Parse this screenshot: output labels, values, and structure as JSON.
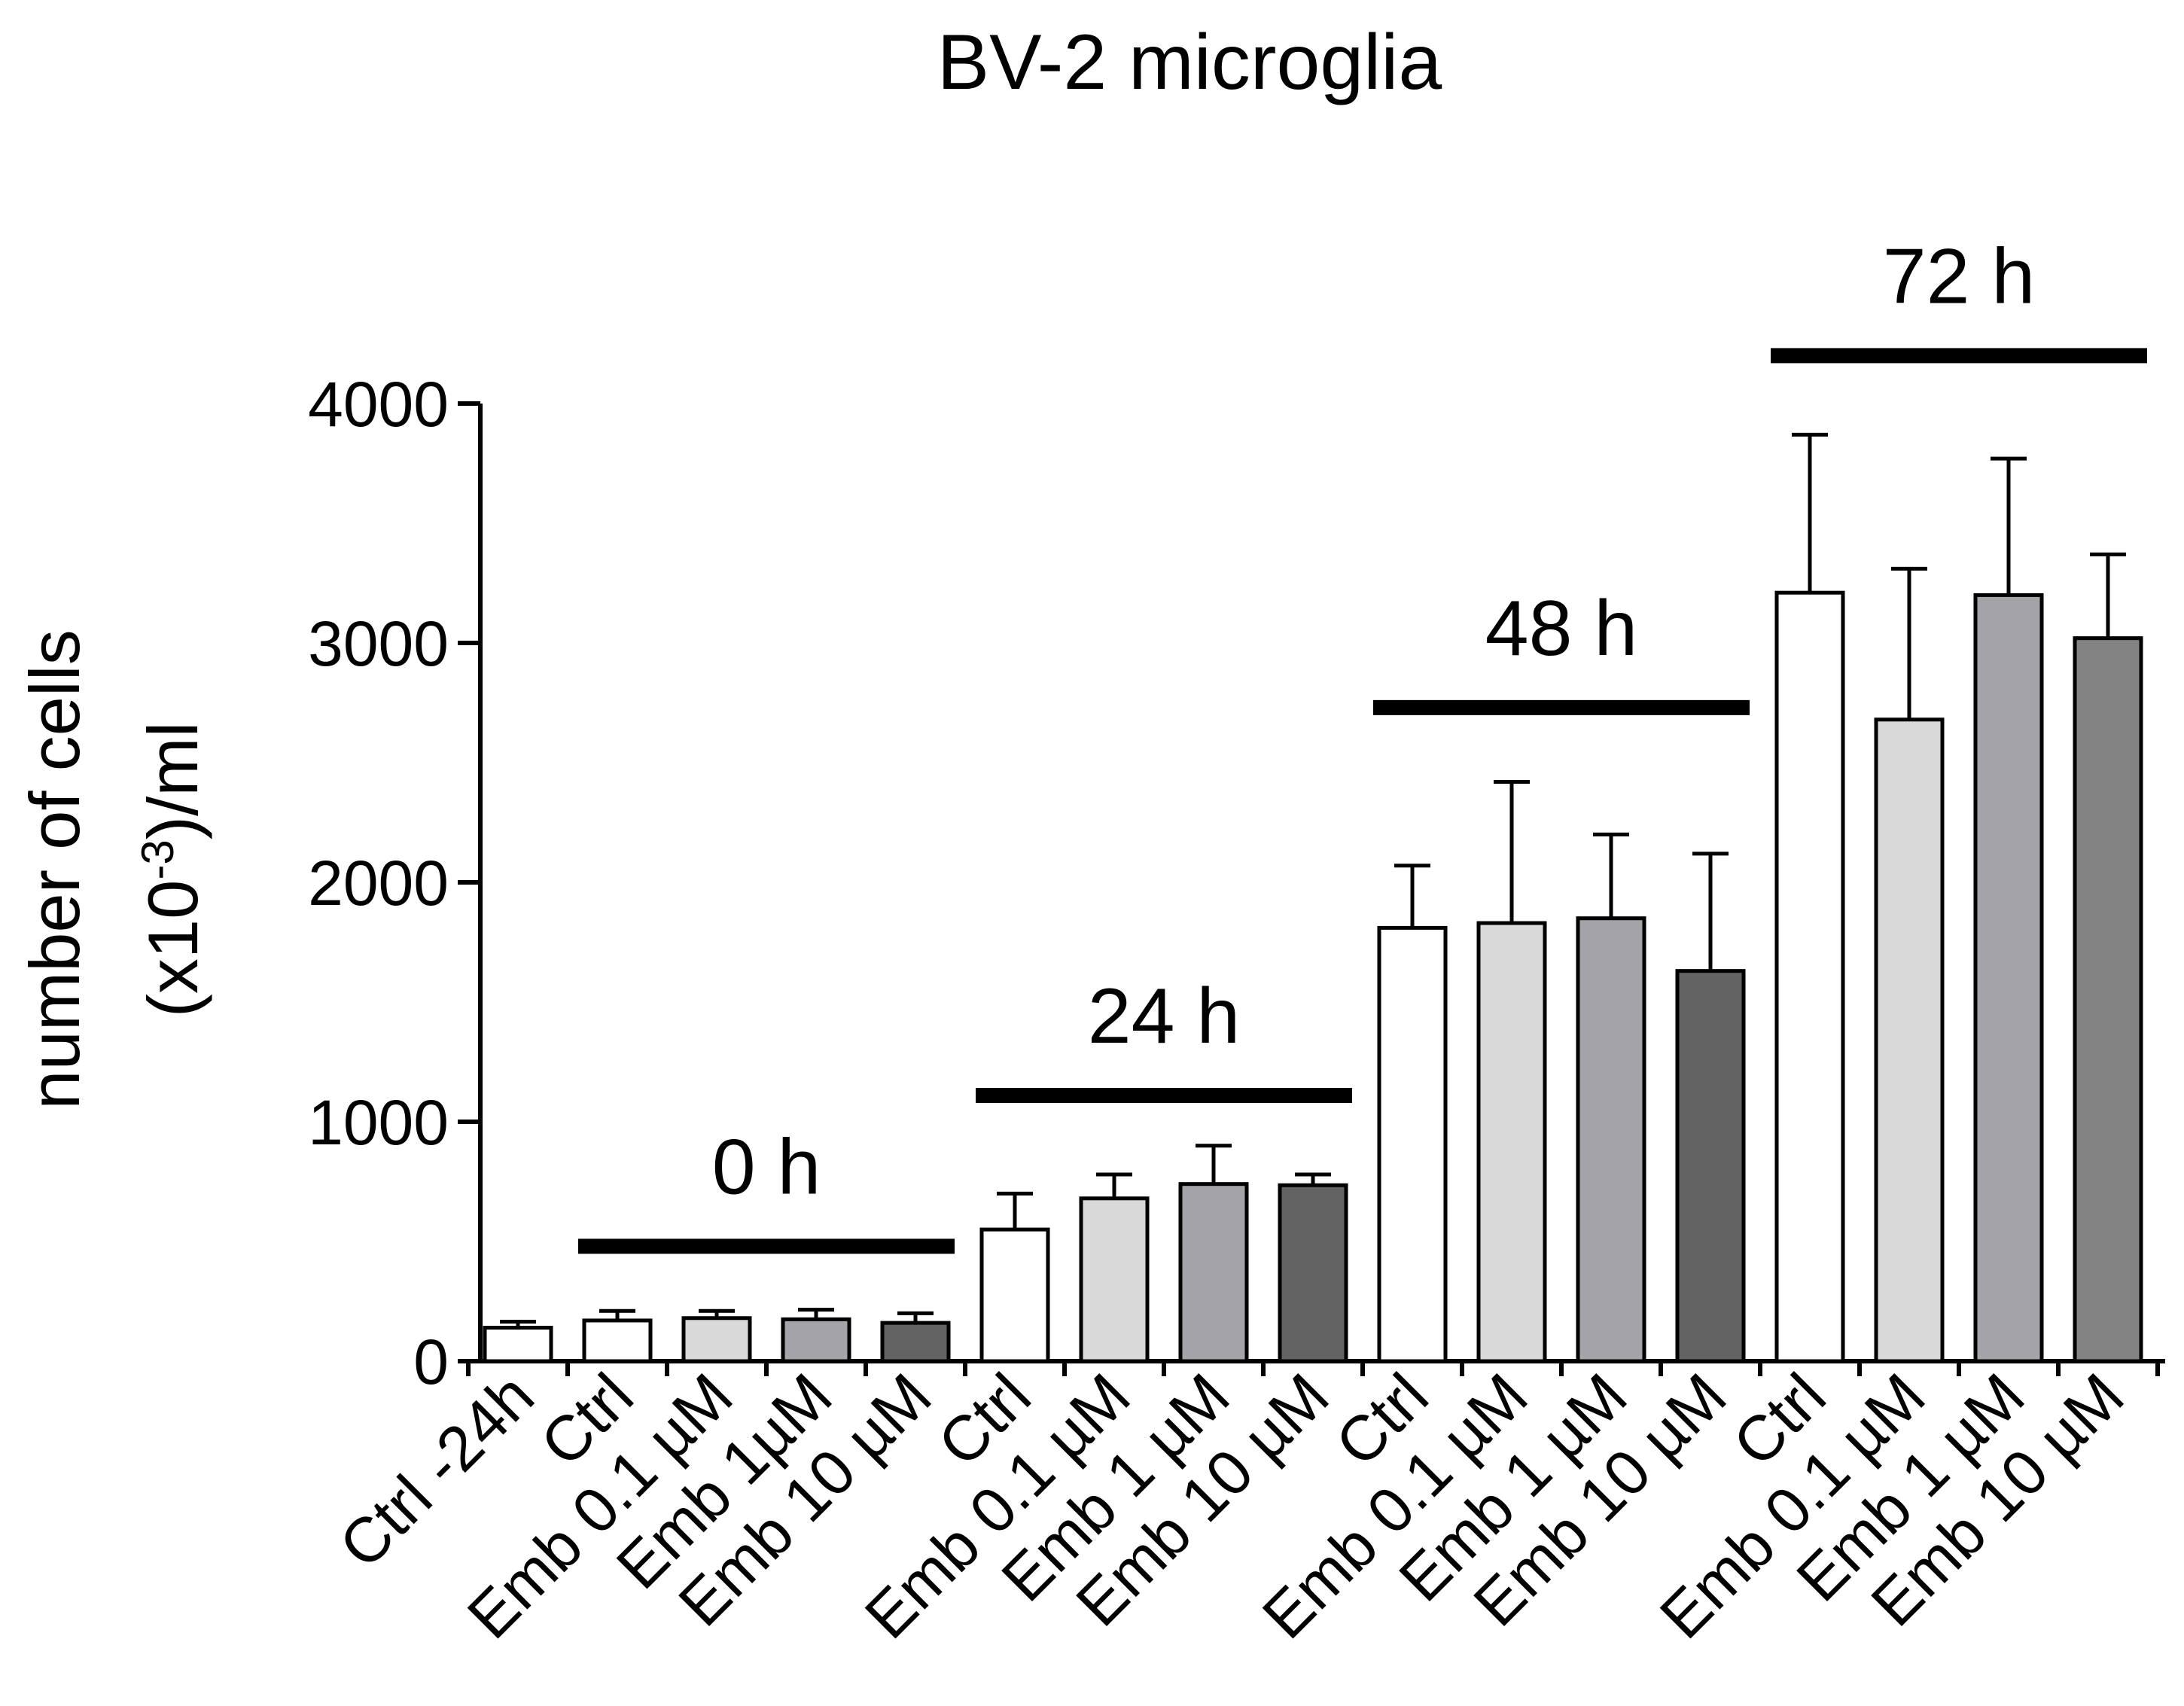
{
  "chart_data": {
    "type": "bar",
    "title": "BV-2 microglia",
    "ylabel_line1": "number of cells",
    "ylabel_line2_prefix": "(x10",
    "ylabel_line2_sup": "-3",
    "ylabel_line2_suffix": ")/ml",
    "xlabel": "",
    "ylim": [
      0,
      4000
    ],
    "yticks": [
      0,
      1000,
      2000,
      3000,
      4000
    ],
    "grid": false,
    "bars": [
      {
        "label": "Ctrl -24h",
        "value": 140,
        "error": 25,
        "color": "#ffffff"
      },
      {
        "label": "Ctrl",
        "value": 170,
        "error": 40,
        "color": "#ffffff"
      },
      {
        "label": "Emb 0.1 µM",
        "value": 180,
        "error": 30,
        "color": "#d9d9d9"
      },
      {
        "label": "Emb 1µM",
        "value": 175,
        "error": 40,
        "color": "#a3a3a8"
      },
      {
        "label": "Emb 10 µM",
        "value": 160,
        "error": 40,
        "color": "#636363"
      },
      {
        "label": "Ctrl",
        "value": 550,
        "error": 150,
        "color": "#ffffff"
      },
      {
        "label": "Emb 0.1 µM",
        "value": 680,
        "error": 100,
        "color": "#d9d9d9"
      },
      {
        "label": "Emb 1 µM",
        "value": 740,
        "error": 160,
        "color": "#a3a3a8"
      },
      {
        "label": "Emb 10 µM",
        "value": 735,
        "error": 45,
        "color": "#636363"
      },
      {
        "label": "Ctrl",
        "value": 1810,
        "error": 260,
        "color": "#ffffff"
      },
      {
        "label": "Emb 0.1 µM",
        "value": 1830,
        "error": 590,
        "color": "#d9d9d9"
      },
      {
        "label": "Emb 1 µM",
        "value": 1850,
        "error": 350,
        "color": "#a3a3a8"
      },
      {
        "label": "Emb 10 µM",
        "value": 1630,
        "error": 490,
        "color": "#636363"
      },
      {
        "label": "Ctrl",
        "value": 3210,
        "error": 660,
        "color": "#ffffff"
      },
      {
        "label": "Emb 0.1 µM",
        "value": 2680,
        "error": 630,
        "color": "#d9d9d9"
      },
      {
        "label": "Emb 1 µM",
        "value": 3200,
        "error": 570,
        "color": "#a3a3a8"
      },
      {
        "label": "Emb 10 µM",
        "value": 3020,
        "error": 350,
        "color": "#838383"
      }
    ],
    "groups": [
      {
        "label": "0 h",
        "first_bar": 1,
        "last_bar": 4,
        "bar_level": 480
      },
      {
        "label": "24 h",
        "first_bar": 5,
        "last_bar": 8,
        "bar_level": 1110
      },
      {
        "label": "48 h",
        "first_bar": 9,
        "last_bar": 12,
        "bar_level": 2730
      },
      {
        "label": "72 h",
        "first_bar": 13,
        "last_bar": 16,
        "bar_level": 4200
      }
    ]
  }
}
